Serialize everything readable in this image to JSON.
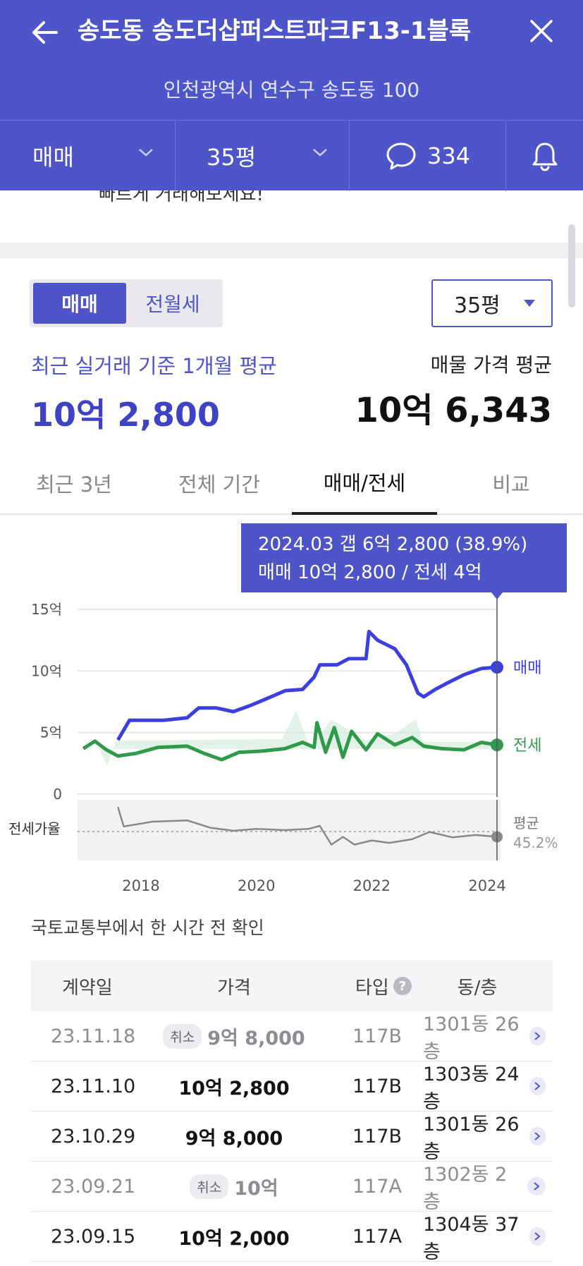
{
  "header": {
    "title": "송도동 송도더샵퍼스트파크F13-1블록",
    "address": "인천광역시 연수구 송도동 100"
  },
  "filters": {
    "trade_type": "매매",
    "size": "35평",
    "comment_count": "334"
  },
  "promo_text": "빠르게 거래해보세요!",
  "segment": {
    "options": [
      "매매",
      "전월세"
    ],
    "active": "매매"
  },
  "size_select": {
    "value": "35평"
  },
  "summary": {
    "recent_label": "최근 실거래 기준 1개월 평균",
    "recent_price": "10억 2,800",
    "listing_label": "매물 가격 평균",
    "listing_price": "10억 6,343"
  },
  "tabs": [
    "최근 3년",
    "전체 기간",
    "매매/전세",
    "비교"
  ],
  "active_tab": "매매/전세",
  "tooltip": {
    "line1": "2024.03  갭 6억 2,800 (38.9%)",
    "line2": "매매 10억 2,800 / 전세 4억"
  },
  "chart_data": {
    "type": "line",
    "ylabels": [
      "15억",
      "10억",
      "5억",
      "0"
    ],
    "ylim": [
      0,
      15
    ],
    "xlabels": [
      "2018",
      "2020",
      "2022",
      "2024"
    ],
    "sub_label": "전세가율",
    "series": [
      {
        "name": "매매",
        "color": "#3b3fe0",
        "points": [
          [
            2017.6,
            4.4
          ],
          [
            2017.8,
            6.0
          ],
          [
            2018.1,
            6.0
          ],
          [
            2018.4,
            6.0
          ],
          [
            2018.8,
            6.2
          ],
          [
            2019.0,
            7.0
          ],
          [
            2019.3,
            7.0
          ],
          [
            2019.6,
            6.7
          ],
          [
            2019.9,
            7.2
          ],
          [
            2020.1,
            7.6
          ],
          [
            2020.3,
            8.0
          ],
          [
            2020.5,
            8.4
          ],
          [
            2020.8,
            8.5
          ],
          [
            2021.0,
            9.5
          ],
          [
            2021.1,
            10.5
          ],
          [
            2021.4,
            10.5
          ],
          [
            2021.6,
            11.0
          ],
          [
            2021.9,
            11.0
          ],
          [
            2021.95,
            13.2
          ],
          [
            2022.1,
            12.5
          ],
          [
            2022.4,
            11.8
          ],
          [
            2022.6,
            10.5
          ],
          [
            2022.8,
            8.2
          ],
          [
            2022.9,
            7.9
          ],
          [
            2023.1,
            8.5
          ],
          [
            2023.3,
            9.0
          ],
          [
            2023.6,
            9.7
          ],
          [
            2023.9,
            10.2
          ],
          [
            2024.17,
            10.3
          ]
        ]
      },
      {
        "name": "전세",
        "color": "#2e9a4a",
        "points": [
          [
            2017.0,
            3.7
          ],
          [
            2017.2,
            4.3
          ],
          [
            2017.4,
            3.6
          ],
          [
            2017.6,
            3.1
          ],
          [
            2017.9,
            3.3
          ],
          [
            2018.3,
            3.8
          ],
          [
            2018.8,
            3.9
          ],
          [
            2019.1,
            3.3
          ],
          [
            2019.4,
            2.8
          ],
          [
            2019.7,
            3.4
          ],
          [
            2020.1,
            3.5
          ],
          [
            2020.5,
            3.7
          ],
          [
            2020.8,
            4.2
          ],
          [
            2021.0,
            3.8
          ],
          [
            2021.05,
            5.8
          ],
          [
            2021.2,
            3.4
          ],
          [
            2021.35,
            5.4
          ],
          [
            2021.5,
            3.0
          ],
          [
            2021.65,
            5.1
          ],
          [
            2021.9,
            3.6
          ],
          [
            2022.1,
            4.9
          ],
          [
            2022.4,
            4.0
          ],
          [
            2022.7,
            4.6
          ],
          [
            2022.9,
            3.9
          ],
          [
            2023.2,
            3.7
          ],
          [
            2023.6,
            3.6
          ],
          [
            2023.9,
            4.2
          ],
          [
            2024.17,
            4.0
          ]
        ]
      },
      {
        "name": "평균",
        "color": "#888888",
        "points": [
          [
            2017.6,
            88
          ],
          [
            2017.7,
            56
          ],
          [
            2018.2,
            64
          ],
          [
            2018.8,
            66
          ],
          [
            2019.2,
            54
          ],
          [
            2019.6,
            49
          ],
          [
            2020.0,
            52
          ],
          [
            2020.5,
            50
          ],
          [
            2020.9,
            52
          ],
          [
            2021.1,
            57
          ],
          [
            2021.3,
            26
          ],
          [
            2021.5,
            39
          ],
          [
            2021.7,
            26
          ],
          [
            2022.0,
            33
          ],
          [
            2022.3,
            29
          ],
          [
            2022.7,
            35
          ],
          [
            2023.0,
            47
          ],
          [
            2023.4,
            38
          ],
          [
            2023.8,
            42
          ],
          [
            2024.17,
            39
          ]
        ]
      }
    ],
    "series_labels": {
      "sale": "매매",
      "jeonse": "전세",
      "avg": "평균",
      "avg_value": "45.2%"
    }
  },
  "source_note": "국토교통부에서 한 시간 전 확인",
  "table": {
    "headers": {
      "date": "계약일",
      "price": "가격",
      "type": "타입",
      "dong": "동/층"
    },
    "cancel_label": "취소",
    "rows": [
      {
        "date": "23.11.18",
        "price": "9억 8,000",
        "type": "117B",
        "dong": "1301동 26층",
        "cancelled": true
      },
      {
        "date": "23.11.10",
        "price": "10억 2,800",
        "type": "117B",
        "dong": "1303동 24층",
        "cancelled": false
      },
      {
        "date": "23.10.29",
        "price": "9억 8,000",
        "type": "117B",
        "dong": "1301동 26층",
        "cancelled": false
      },
      {
        "date": "23.09.21",
        "price": "10억",
        "type": "117A",
        "dong": "1302동 2층",
        "cancelled": true
      },
      {
        "date": "23.09.15",
        "price": "10억 2,000",
        "type": "117A",
        "dong": "1304동 37층",
        "cancelled": false
      }
    ]
  }
}
